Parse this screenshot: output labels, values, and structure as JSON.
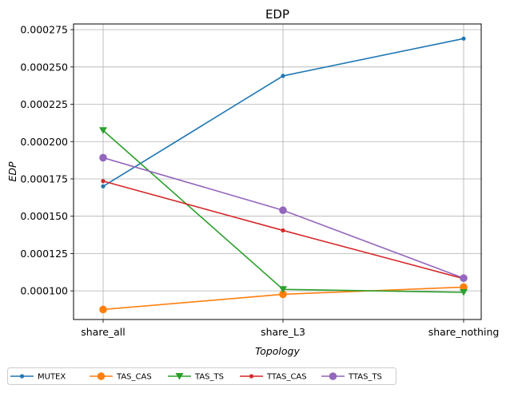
{
  "chart_data": {
    "type": "line",
    "title": "EDP",
    "xlabel": "Topology",
    "ylabel": "EDP",
    "categories": [
      "share_all",
      "share_L3",
      "share_nothing"
    ],
    "ylim": [
      8.08e-05,
      0.0002788
    ],
    "yticks": [
      0.0001,
      0.000125,
      0.00015,
      0.000175,
      0.0002,
      0.000225,
      0.00025,
      0.000275
    ],
    "ytick_labels": [
      "0.000100",
      "0.000125",
      "0.000150",
      "0.000175",
      "0.000200",
      "0.000225",
      "0.000250",
      "0.000275"
    ],
    "grid": true,
    "legend_position": "bottom, outside plot, single row",
    "series": [
      {
        "name": "MUTEX",
        "values": [
          0.00017,
          0.000244,
          0.000269
        ],
        "color": "#1f77b4",
        "marker": "dot"
      },
      {
        "name": "TAS_CAS",
        "values": [
          8.75e-05,
          9.77e-05,
          0.0001025
        ],
        "color": "#ff7f0e",
        "marker": "circle"
      },
      {
        "name": "TAS_TS",
        "values": [
          0.0002075,
          0.000101,
          9.9e-05
        ],
        "color": "#2ca02c",
        "marker": "triangle-down"
      },
      {
        "name": "TTAS_CAS",
        "values": [
          0.0001735,
          0.0001405,
          0.0001082
        ],
        "color": "#d62728",
        "marker": "dot"
      },
      {
        "name": "TTAS_TS",
        "values": [
          0.0001892,
          0.000154,
          0.0001085
        ],
        "color": "#9467bd",
        "marker": "circle"
      }
    ]
  }
}
